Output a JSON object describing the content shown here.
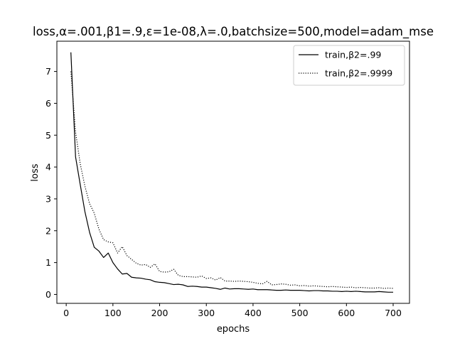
{
  "chart_data": {
    "type": "line",
    "title": "loss,α=.001,β1=.9,ε=1e-08,λ=.0,batchsize=500,model=adam_mse",
    "xlabel": "epochs",
    "ylabel": "loss",
    "xlim": [
      -20,
      735
    ],
    "ylim": [
      -0.28,
      7.95
    ],
    "xticks": [
      0,
      100,
      200,
      300,
      400,
      500,
      600,
      700
    ],
    "yticks": [
      0,
      1,
      2,
      3,
      4,
      5,
      6,
      7
    ],
    "grid": false,
    "legend_position": "top-right",
    "series": [
      {
        "name": "train,β2=.99",
        "style": "solid",
        "color": "#000000",
        "x": [
          10,
          20,
          30,
          40,
          50,
          60,
          70,
          80,
          90,
          100,
          110,
          120,
          130,
          140,
          150,
          160,
          170,
          180,
          190,
          200,
          210,
          220,
          230,
          240,
          250,
          260,
          270,
          280,
          290,
          300,
          310,
          320,
          330,
          340,
          350,
          360,
          370,
          380,
          390,
          400,
          410,
          420,
          430,
          440,
          450,
          460,
          470,
          480,
          490,
          500,
          510,
          520,
          530,
          540,
          550,
          560,
          570,
          580,
          590,
          600,
          610,
          620,
          630,
          640,
          650,
          660,
          670,
          680,
          690,
          700
        ],
        "y": [
          7.6,
          4.32,
          3.45,
          2.6,
          1.95,
          1.48,
          1.36,
          1.16,
          1.3,
          1.0,
          0.8,
          0.64,
          0.66,
          0.54,
          0.52,
          0.51,
          0.48,
          0.46,
          0.4,
          0.38,
          0.37,
          0.34,
          0.31,
          0.32,
          0.3,
          0.25,
          0.26,
          0.25,
          0.23,
          0.23,
          0.21,
          0.19,
          0.16,
          0.2,
          0.17,
          0.18,
          0.18,
          0.17,
          0.16,
          0.17,
          0.15,
          0.15,
          0.15,
          0.14,
          0.13,
          0.13,
          0.14,
          0.13,
          0.13,
          0.13,
          0.12,
          0.11,
          0.12,
          0.12,
          0.11,
          0.11,
          0.1,
          0.1,
          0.09,
          0.1,
          0.09,
          0.1,
          0.09,
          0.08,
          0.08,
          0.08,
          0.09,
          0.08,
          0.07,
          0.07
        ]
      },
      {
        "name": "train,β2=.9999",
        "style": "dotted",
        "color": "#000000",
        "x": [
          10,
          20,
          30,
          40,
          50,
          60,
          70,
          80,
          90,
          100,
          110,
          120,
          130,
          140,
          150,
          160,
          170,
          180,
          190,
          200,
          210,
          220,
          230,
          240,
          250,
          260,
          270,
          280,
          290,
          300,
          310,
          320,
          330,
          340,
          350,
          360,
          370,
          380,
          390,
          400,
          410,
          420,
          430,
          440,
          450,
          460,
          470,
          480,
          490,
          500,
          510,
          520,
          530,
          540,
          550,
          560,
          570,
          580,
          590,
          600,
          610,
          620,
          630,
          640,
          650,
          660,
          670,
          680,
          690,
          700
        ],
        "y": [
          7.0,
          5.1,
          4.1,
          3.4,
          2.85,
          2.55,
          2.05,
          1.72,
          1.65,
          1.62,
          1.3,
          1.5,
          1.22,
          1.1,
          0.98,
          0.92,
          0.94,
          0.85,
          0.96,
          0.72,
          0.7,
          0.71,
          0.79,
          0.6,
          0.56,
          0.56,
          0.55,
          0.54,
          0.58,
          0.5,
          0.52,
          0.45,
          0.53,
          0.42,
          0.42,
          0.41,
          0.42,
          0.41,
          0.4,
          0.38,
          0.35,
          0.33,
          0.41,
          0.3,
          0.31,
          0.33,
          0.32,
          0.29,
          0.3,
          0.27,
          0.28,
          0.26,
          0.27,
          0.26,
          0.25,
          0.24,
          0.25,
          0.24,
          0.23,
          0.22,
          0.23,
          0.21,
          0.22,
          0.21,
          0.2,
          0.2,
          0.21,
          0.19,
          0.2,
          0.19
        ]
      }
    ]
  }
}
